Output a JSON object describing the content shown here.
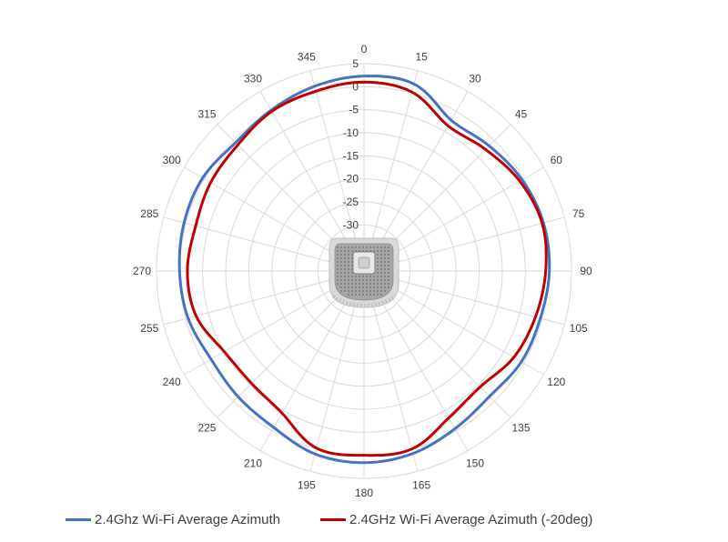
{
  "chart_data": {
    "type": "radar",
    "title": "",
    "angle_labels": [
      "0",
      "15",
      "30",
      "45",
      "60",
      "75",
      "90",
      "105",
      "120",
      "135",
      "150",
      "165",
      "180",
      "195",
      "210",
      "225",
      "240",
      "255",
      "270",
      "285",
      "300",
      "315",
      "330",
      "345"
    ],
    "radial_ticks": [
      "5",
      "0",
      "-5",
      "-10",
      "-15",
      "-20",
      "-25",
      "-30"
    ],
    "radial_range": [
      -40,
      5
    ],
    "grid": true,
    "legend_position": "bottom",
    "series": [
      {
        "name": "2.4Ghz Wi-Fi Average Azimuth",
        "color": "#4472C4",
        "theta": [
          0,
          15,
          30,
          45,
          60,
          75,
          90,
          105,
          120,
          135,
          150,
          165,
          180,
          195,
          210,
          225,
          240,
          255,
          270,
          285,
          300,
          315,
          330,
          345
        ],
        "values": [
          2.3,
          2.0,
          -2.2,
          -1.6,
          -0.4,
          0.3,
          0.2,
          -0.4,
          -0.6,
          -1.5,
          -0.5,
          1.0,
          1.6,
          1.1,
          -0.8,
          -1.4,
          -1.7,
          -0.5,
          0.0,
          0.4,
          0.4,
          -0.6,
          0.3,
          1.5
        ]
      },
      {
        "name": "2.4GHz Wi-Fi Average Azimuth (-20deg)",
        "color": "#C00000",
        "theta": [
          0,
          15,
          30,
          45,
          60,
          75,
          90,
          105,
          120,
          135,
          150,
          165,
          180,
          195,
          210,
          225,
          240,
          255,
          270,
          285,
          300,
          315,
          330,
          345
        ],
        "values": [
          1.0,
          0.2,
          -3.6,
          -2.7,
          -1.0,
          0.0,
          -0.6,
          -1.5,
          -2.5,
          -4.4,
          -3.2,
          0.0,
          0.0,
          -0.2,
          -4.4,
          -5.5,
          -5.0,
          -2.3,
          -1.7,
          -2.2,
          -1.6,
          -1.3,
          0.0,
          0.4
        ]
      }
    ]
  },
  "legend": {
    "items": [
      {
        "label": "2.4Ghz Wi-Fi Average Azimuth",
        "color": "#4472C4"
      },
      {
        "label": "2.4GHz Wi-Fi Average Azimuth (-20deg)",
        "color": "#C00000"
      }
    ]
  },
  "device_image": {
    "icon": "ceiling-access-point-icon"
  }
}
